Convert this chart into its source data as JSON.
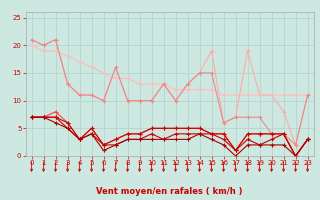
{
  "background_color": "#cce8e0",
  "grid_color": "#aacccc",
  "xlabel": "Vent moyen/en rafales ( km/h )",
  "xlim": [
    -0.5,
    23.5
  ],
  "ylim": [
    0,
    26
  ],
  "yticks": [
    0,
    5,
    10,
    15,
    20,
    25
  ],
  "xticks": [
    0,
    1,
    2,
    3,
    4,
    5,
    6,
    7,
    8,
    9,
    10,
    11,
    12,
    13,
    14,
    15,
    16,
    17,
    18,
    19,
    20,
    21,
    22,
    23
  ],
  "series": [
    {
      "x": [
        0,
        1,
        2,
        3,
        4,
        5,
        6,
        7,
        8,
        9,
        10,
        11,
        12,
        13,
        14,
        15,
        16,
        17,
        18,
        19,
        20,
        21,
        22,
        23
      ],
      "y": [
        21,
        20,
        21,
        13,
        11,
        11,
        10,
        16,
        10,
        10,
        10,
        13,
        10,
        13,
        15,
        19,
        6,
        7,
        19,
        11,
        11,
        8,
        2,
        11
      ],
      "color": "#ffaaaa",
      "marker": "+",
      "markersize": 3,
      "linewidth": 0.8
    },
    {
      "x": [
        0,
        1,
        2,
        3,
        4,
        5,
        6,
        7,
        8,
        9,
        10,
        11,
        12,
        13,
        14,
        15,
        16,
        17,
        18,
        19,
        20,
        21,
        22,
        23
      ],
      "y": [
        20,
        19,
        19,
        18,
        17,
        16,
        15,
        14,
        14,
        13,
        13,
        13,
        12,
        12,
        12,
        12,
        11,
        11,
        11,
        11,
        11,
        11,
        11,
        11
      ],
      "color": "#ffbbbb",
      "marker": "+",
      "markersize": 3,
      "linewidth": 0.8
    },
    {
      "x": [
        0,
        1,
        2,
        3,
        4,
        5,
        6,
        7,
        8,
        9,
        10,
        11,
        12,
        13,
        14,
        15,
        16,
        17,
        18,
        19,
        20,
        21,
        22,
        23
      ],
      "y": [
        21,
        20,
        21,
        13,
        11,
        11,
        10,
        16,
        10,
        10,
        10,
        13,
        10,
        13,
        15,
        15,
        6,
        7,
        7,
        7,
        4,
        4,
        2,
        11
      ],
      "color": "#ee8888",
      "marker": "+",
      "markersize": 3,
      "linewidth": 0.8
    },
    {
      "x": [
        0,
        1,
        2,
        3,
        4,
        5,
        6,
        7,
        8,
        9,
        10,
        11,
        12,
        13,
        14,
        15,
        16,
        17,
        18,
        19,
        20,
        21,
        22,
        23
      ],
      "y": [
        7,
        7,
        8,
        6,
        3,
        5,
        2,
        3,
        4,
        4,
        5,
        5,
        5,
        5,
        5,
        4,
        4,
        1,
        4,
        4,
        4,
        4,
        0,
        3
      ],
      "color": "#ff4444",
      "marker": "+",
      "markersize": 3,
      "linewidth": 0.8
    },
    {
      "x": [
        0,
        1,
        2,
        3,
        4,
        5,
        6,
        7,
        8,
        9,
        10,
        11,
        12,
        13,
        14,
        15,
        16,
        17,
        18,
        19,
        20,
        21,
        22,
        23
      ],
      "y": [
        7,
        7,
        7,
        6,
        3,
        5,
        2,
        3,
        4,
        4,
        5,
        5,
        5,
        5,
        5,
        4,
        4,
        1,
        4,
        4,
        4,
        4,
        0,
        3
      ],
      "color": "#cc0000",
      "marker": "+",
      "markersize": 3,
      "linewidth": 0.8
    },
    {
      "x": [
        0,
        1,
        2,
        3,
        4,
        5,
        6,
        7,
        8,
        9,
        10,
        11,
        12,
        13,
        14,
        15,
        16,
        17,
        18,
        19,
        20,
        21,
        22,
        23
      ],
      "y": [
        7,
        7,
        7,
        5,
        3,
        4,
        2,
        2,
        3,
        3,
        4,
        3,
        4,
        4,
        4,
        4,
        3,
        1,
        3,
        2,
        3,
        4,
        0,
        3
      ],
      "color": "#cc0000",
      "marker": "+",
      "markersize": 3,
      "linewidth": 0.8
    },
    {
      "x": [
        0,
        1,
        2,
        3,
        4,
        5,
        6,
        7,
        8,
        9,
        10,
        11,
        12,
        13,
        14,
        15,
        16,
        17,
        18,
        19,
        20,
        21,
        22,
        23
      ],
      "y": [
        7,
        7,
        6,
        5,
        3,
        4,
        1,
        2,
        3,
        3,
        3,
        3,
        3,
        3,
        4,
        3,
        2,
        0,
        2,
        2,
        2,
        2,
        0,
        3
      ],
      "color": "#aa0000",
      "marker": "+",
      "markersize": 3,
      "linewidth": 0.8
    }
  ],
  "arrow_color": "#cc0000",
  "xlabel_fontsize": 6,
  "xlabel_color": "#cc0000",
  "tick_fontsize": 5,
  "tick_color": "#cc0000"
}
